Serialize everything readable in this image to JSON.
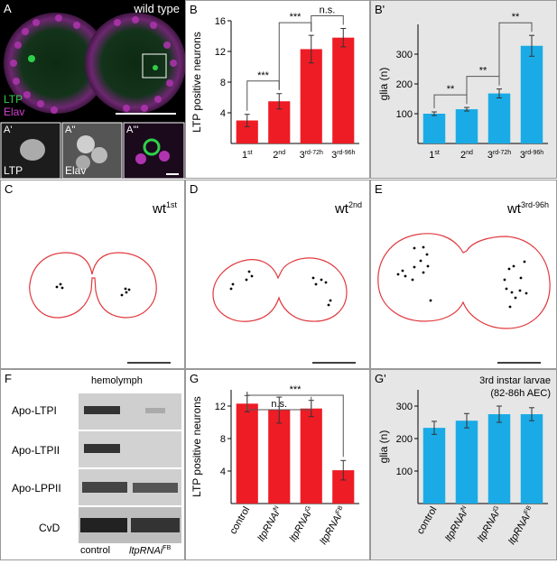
{
  "panels": {
    "A": {
      "label": "A",
      "title": "wild type",
      "legend_ltp": "LTP",
      "legend_elav": "Elav",
      "sub": [
        {
          "label": "A'",
          "text": "LTP"
        },
        {
          "label": "A''",
          "text": "Elav"
        },
        {
          "label": "A'''",
          "text": ""
        }
      ]
    },
    "B": {
      "label": "B"
    },
    "B2": {
      "label": "B'"
    },
    "C": {
      "label": "C",
      "tag": "wt",
      "sup": "1st"
    },
    "D": {
      "label": "D",
      "tag": "wt",
      "sup": "2nd"
    },
    "E": {
      "label": "E",
      "tag": "wt",
      "sup": "3rd-96h"
    },
    "F": {
      "label": "F",
      "header": "hemolymph",
      "rows": [
        "Apo-LTPI",
        "Apo-LTPII",
        "Apo-LPPII",
        "CvD"
      ],
      "lanes": [
        "control",
        "ltpRNAi"
      ],
      "lane2_sup": "FB"
    },
    "G": {
      "label": "G"
    },
    "G2": {
      "label": "G'",
      "note_line1": "3rd instar larvae",
      "note_line2": "(82-86h AEC)"
    }
  },
  "colors": {
    "red": "#ee1c25",
    "blue": "#1aabe6",
    "outline": "#e0393e",
    "gray_panel": "#e6e6e6"
  },
  "chart_data": [
    {
      "id": "B",
      "type": "bar",
      "ylabel": "LTP positive neurons",
      "categories": [
        "1st",
        "2nd",
        "3rd-72h",
        "3rd-96h"
      ],
      "values": [
        3.0,
        5.5,
        12.3,
        13.8
      ],
      "errors": [
        0.8,
        1.0,
        1.8,
        1.2
      ],
      "ylim": [
        0,
        16
      ],
      "yticks": [
        4,
        8,
        12,
        16
      ],
      "significance": [
        {
          "from": 0,
          "to": 1,
          "text": "***"
        },
        {
          "from": 1,
          "to": 2,
          "text": "***"
        },
        {
          "from": 2,
          "to": 3,
          "text": "n.s."
        }
      ]
    },
    {
      "id": "B2",
      "type": "bar",
      "ylabel": "glia (n)",
      "categories": [
        "1st",
        "2nd",
        "3rd-72h",
        "3rd-96h"
      ],
      "values": [
        100,
        115,
        168,
        328
      ],
      "errors": [
        6,
        6,
        15,
        35
      ],
      "ylim": [
        0,
        400
      ],
      "yticks": [
        100,
        200,
        300
      ],
      "significance": [
        {
          "from": 0,
          "to": 1,
          "text": "**"
        },
        {
          "from": 1,
          "to": 2,
          "text": "**"
        },
        {
          "from": 2,
          "to": 3,
          "text": "**"
        }
      ]
    },
    {
      "id": "G",
      "type": "bar",
      "ylabel": "LTP positive neurons",
      "categories": [
        "control",
        "ltpRNAi",
        "ltpRNAi",
        "ltpRNAi"
      ],
      "category_sups": [
        "",
        "N",
        "G",
        "FB"
      ],
      "values": [
        12.3,
        11.5,
        11.7,
        4.1
      ],
      "errors": [
        1.0,
        1.6,
        1.0,
        1.2
      ],
      "ylim": [
        0,
        14
      ],
      "yticks": [
        4,
        8,
        12
      ],
      "significance": [
        {
          "from": 0,
          "to": 2,
          "text": "n.s."
        },
        {
          "from": 0,
          "to": 3,
          "text": "***"
        }
      ]
    },
    {
      "id": "G2",
      "type": "bar",
      "ylabel": "glia (n)",
      "categories": [
        "control",
        "ltpRNAi",
        "ltpRNAi",
        "ltpRNAi"
      ],
      "category_sups": [
        "",
        "N",
        "G",
        "FB"
      ],
      "values": [
        233,
        255,
        275,
        275
      ],
      "errors": [
        20,
        22,
        25,
        20
      ],
      "ylim": [
        0,
        350
      ],
      "yticks": [
        100,
        200,
        300
      ]
    }
  ]
}
